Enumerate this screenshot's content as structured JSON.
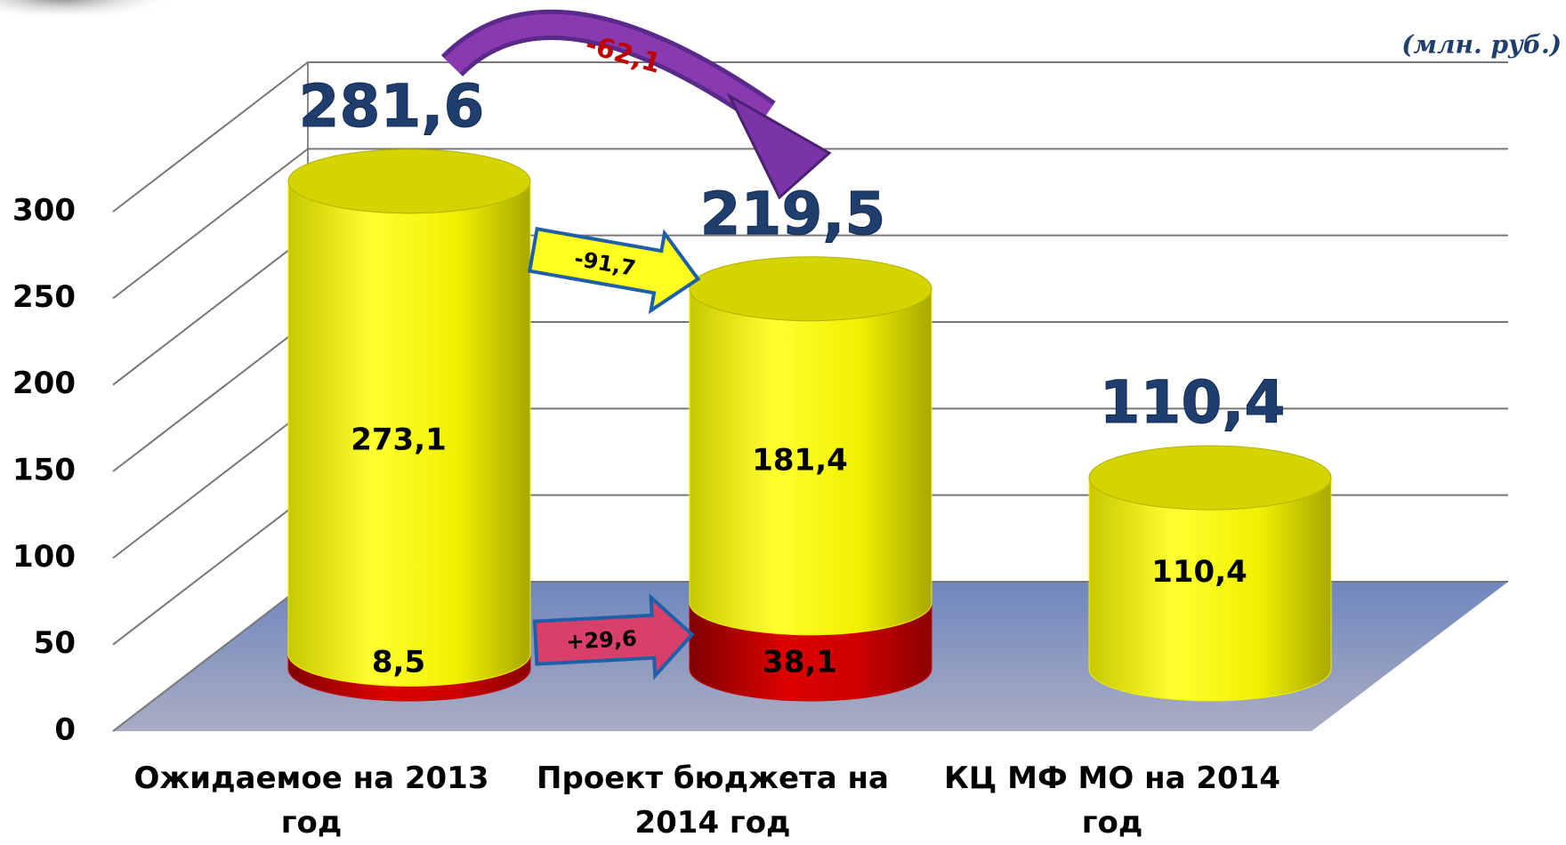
{
  "unit_label": "(млн. руб.)",
  "chart_data": {
    "type": "bar",
    "stacked": true,
    "categories": [
      "Ожидаемое на 2013 год",
      "Проект бюджета на 2014 год",
      "КЦ МФ МО на 2014 год"
    ],
    "series": [
      {
        "color": "#cc0000",
        "values": [
          8.5,
          38.1,
          null
        ],
        "value_labels": [
          "8,5",
          "38,1",
          null
        ]
      },
      {
        "color": "#f0f000",
        "values": [
          273.1,
          181.4,
          110.4
        ],
        "value_labels": [
          "273,1",
          "181,4",
          "110,4"
        ]
      }
    ],
    "totals": [
      281.6,
      219.5,
      110.4
    ],
    "total_labels": [
      "281,6",
      "219,5",
      "110,4"
    ],
    "annotations": [
      "-62,1",
      "-91,7",
      "+29,6"
    ],
    "ylim": [
      0,
      300
    ],
    "yticks": [
      0,
      50,
      100,
      150,
      200,
      250,
      300
    ],
    "grid": true
  }
}
